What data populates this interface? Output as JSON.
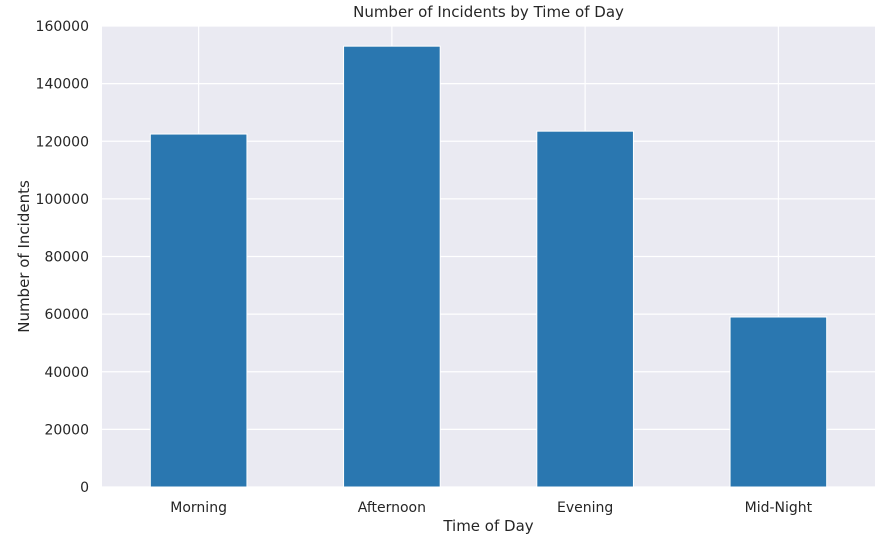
{
  "chart_data": {
    "type": "bar",
    "title": "Number of Incidents by Time of Day",
    "xlabel": "Time of Day",
    "ylabel": "Number of Incidents",
    "categories": [
      "Morning",
      "Afternoon",
      "Evening",
      "Mid-Night"
    ],
    "values": [
      122500,
      153000,
      123500,
      59000
    ],
    "ylim": [
      0,
      160000
    ],
    "yticks": [
      "0",
      "20000",
      "40000",
      "60000",
      "80000",
      "100000",
      "120000",
      "140000",
      "160000"
    ],
    "grid": true,
    "legend": "none",
    "colors": {
      "bar": "#2a77b0",
      "plot_background": "#eaeaf2",
      "grid": "#ffffff",
      "text": "#262626"
    }
  }
}
